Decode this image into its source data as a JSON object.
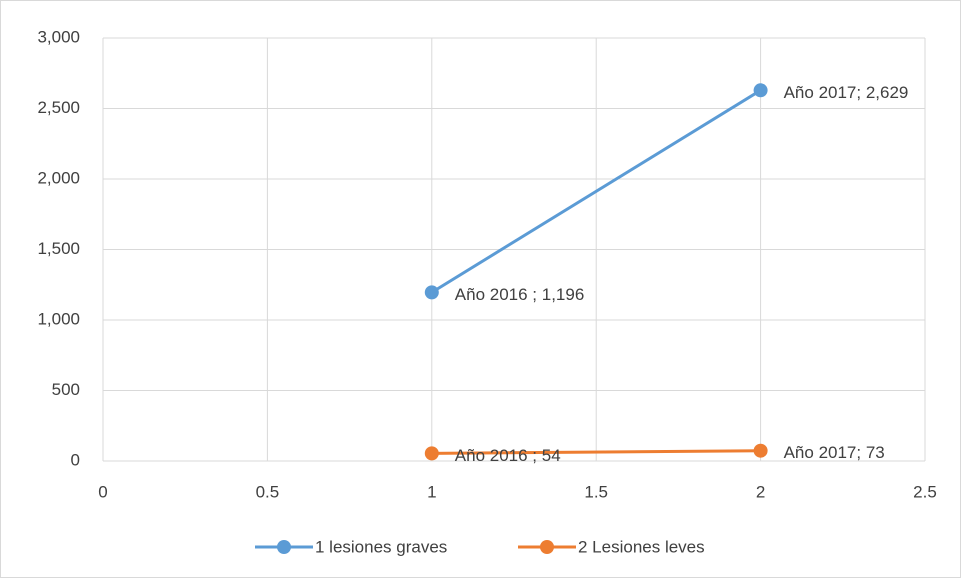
{
  "chart_data": {
    "type": "line",
    "x": [
      1,
      2
    ],
    "series": [
      {
        "name": "1 lesiones graves",
        "color": "#5b9bd5",
        "values": [
          1196,
          2629
        ],
        "value_labels": [
          "Año 2016 ; 1,196",
          "Año 2017; 2,629"
        ]
      },
      {
        "name": "2 Lesiones leves",
        "color": "#ed7d31",
        "values": [
          54,
          73
        ],
        "value_labels": [
          "Año 2016 ; 54",
          "Año 2017; 73"
        ]
      }
    ],
    "xlim": [
      0,
      2.5
    ],
    "xticks": [
      0,
      0.5,
      1,
      1.5,
      2,
      2.5
    ],
    "ylim": [
      0,
      3000
    ],
    "yticks": [
      0,
      500,
      {
        "value": 1000,
        "label": "1,000"
      },
      {
        "value": 1500,
        "label": "1,500"
      },
      {
        "value": 2000,
        "label": "2,000"
      },
      {
        "value": 2500,
        "label": "2,500"
      },
      {
        "value": 3000,
        "label": "3,000"
      }
    ],
    "grid": true,
    "legend": "bottom"
  }
}
